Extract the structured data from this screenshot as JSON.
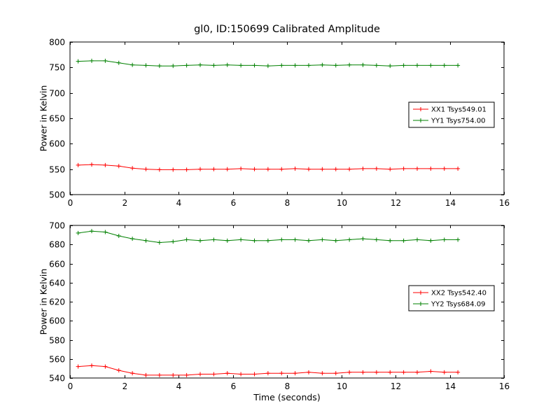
{
  "figure": {
    "title": "gl0, ID:150699 Calibrated Amplitude",
    "background": "#ffffff",
    "axis_color": "#000000"
  },
  "chart_data": [
    {
      "type": "line",
      "title": "gl0, ID:150699 Calibrated Amplitude",
      "xlabel": "",
      "ylabel": "Power in Kelvin",
      "xlim": [
        0,
        16
      ],
      "ylim": [
        500,
        800
      ],
      "xticks": [
        0,
        2,
        4,
        6,
        8,
        10,
        12,
        14,
        16
      ],
      "yticks": [
        500,
        550,
        600,
        650,
        700,
        750,
        800
      ],
      "grid": false,
      "legend_position": "center right",
      "x": [
        0.3,
        0.8,
        1.3,
        1.8,
        2.3,
        2.8,
        3.3,
        3.8,
        4.3,
        4.8,
        5.3,
        5.8,
        6.3,
        6.8,
        7.3,
        7.8,
        8.3,
        8.8,
        9.3,
        9.8,
        10.3,
        10.8,
        11.3,
        11.8,
        12.3,
        12.8,
        13.3,
        13.8,
        14.3
      ],
      "series": [
        {
          "name": "XX1 Tsys549.01",
          "color": "#ff0000",
          "marker": "+",
          "values": [
            558,
            559,
            558,
            556,
            552,
            550,
            549,
            549,
            549,
            550,
            550,
            550,
            551,
            550,
            550,
            550,
            551,
            550,
            550,
            550,
            550,
            551,
            551,
            550,
            551,
            551,
            551,
            551,
            551
          ]
        },
        {
          "name": "YY1 Tsys754.00",
          "color": "#008000",
          "marker": "+",
          "values": [
            762,
            763,
            763,
            759,
            755,
            754,
            753,
            753,
            754,
            755,
            754,
            755,
            754,
            754,
            753,
            754,
            754,
            754,
            755,
            754,
            755,
            755,
            754,
            753,
            754,
            754,
            754,
            754,
            754
          ]
        }
      ]
    },
    {
      "type": "line",
      "title": "",
      "xlabel": "Time (seconds)",
      "ylabel": "Power in Kelvin",
      "xlim": [
        0,
        16
      ],
      "ylim": [
        540,
        700
      ],
      "xticks": [
        0,
        2,
        4,
        6,
        8,
        10,
        12,
        14,
        16
      ],
      "yticks": [
        540,
        560,
        580,
        600,
        620,
        640,
        660,
        680,
        700
      ],
      "grid": false,
      "legend_position": "center right",
      "x": [
        0.3,
        0.8,
        1.3,
        1.8,
        2.3,
        2.8,
        3.3,
        3.8,
        4.3,
        4.8,
        5.3,
        5.8,
        6.3,
        6.8,
        7.3,
        7.8,
        8.3,
        8.8,
        9.3,
        9.8,
        10.3,
        10.8,
        11.3,
        11.8,
        12.3,
        12.8,
        13.3,
        13.8,
        14.3
      ],
      "series": [
        {
          "name": "XX2 Tsys542.40",
          "color": "#ff0000",
          "marker": "+",
          "values": [
            552,
            553,
            552,
            548,
            545,
            543,
            543,
            543,
            543,
            544,
            544,
            545,
            544,
            544,
            545,
            545,
            545,
            546,
            545,
            545,
            546,
            546,
            546,
            546,
            546,
            546,
            547,
            546,
            546
          ]
        },
        {
          "name": "YY2 Tsys684.09",
          "color": "#008000",
          "marker": "+",
          "values": [
            692,
            694,
            693,
            689,
            686,
            684,
            682,
            683,
            685,
            684,
            685,
            684,
            685,
            684,
            684,
            685,
            685,
            684,
            685,
            684,
            685,
            686,
            685,
            684,
            684,
            685,
            684,
            685,
            685
          ]
        }
      ]
    }
  ]
}
